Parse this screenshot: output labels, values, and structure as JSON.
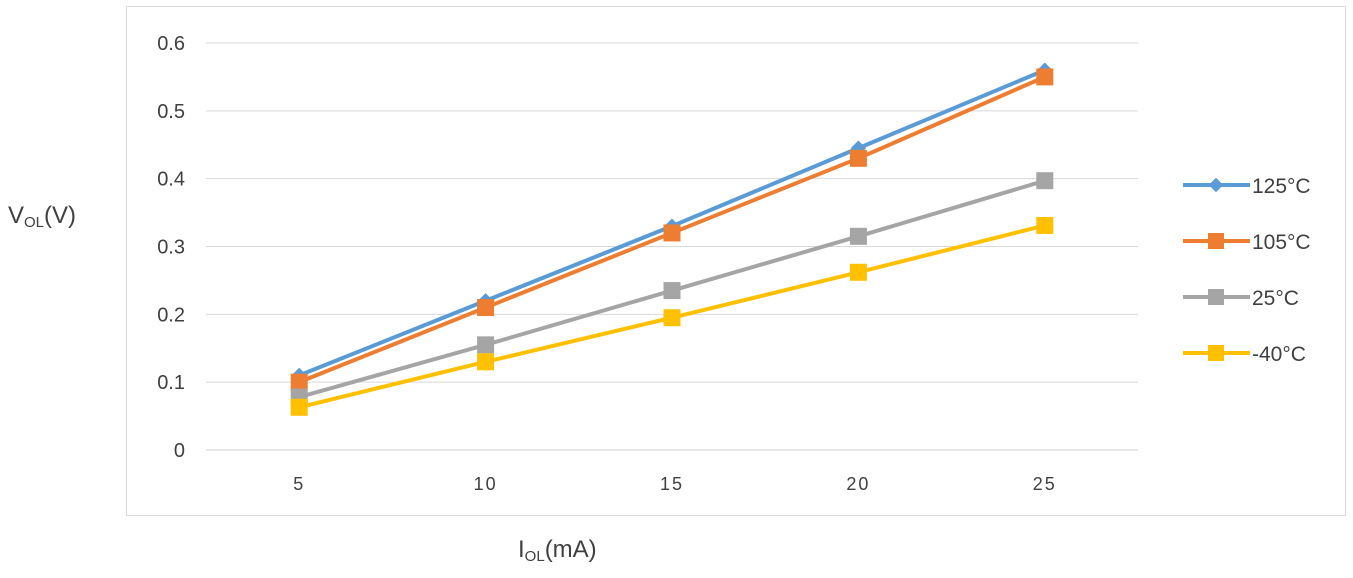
{
  "chart_data": {
    "type": "line",
    "x": [
      5,
      10,
      15,
      20,
      25
    ],
    "xlabel": {
      "main": "I",
      "sub": "OL",
      "unit": "(mA)"
    },
    "ylabel": {
      "main": "V",
      "sub": "OL",
      "unit": "(V)"
    },
    "ylim": [
      0,
      0.6
    ],
    "yticks": [
      "0",
      "0.1",
      "0.2",
      "0.3",
      "0.4",
      "0.5",
      "0.6"
    ],
    "xticks": [
      "5",
      "10",
      "15",
      "20",
      "25"
    ],
    "grid": true,
    "legend_position": "right",
    "series": [
      {
        "name": "125°C",
        "color": "#5b9bd5",
        "marker": "diamond",
        "values": [
          0.11,
          0.22,
          0.33,
          0.445,
          0.56
        ]
      },
      {
        "name": "105°C",
        "color": "#ed7d31",
        "marker": "square",
        "values": [
          0.1,
          0.21,
          0.32,
          0.43,
          0.55
        ]
      },
      {
        "name": "25°C",
        "color": "#a5a5a5",
        "marker": "square",
        "values": [
          0.078,
          0.155,
          0.235,
          0.315,
          0.397
        ]
      },
      {
        "name": "-40°C",
        "color": "#ffc000",
        "marker": "square",
        "values": [
          0.063,
          0.13,
          0.195,
          0.262,
          0.331
        ]
      }
    ]
  }
}
